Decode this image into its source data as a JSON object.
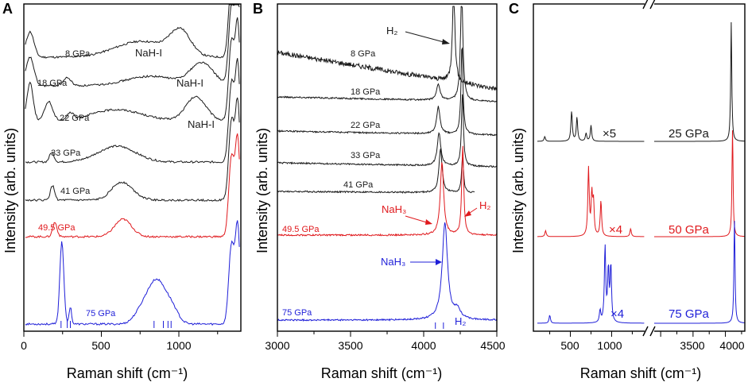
{
  "figure": {
    "panels": [
      "A",
      "B",
      "C"
    ],
    "y_axis_label": "Intensity (arb. units)",
    "x_axis_label": "Raman shift (cm⁻¹)"
  },
  "colors": {
    "black": "#1a1a1a",
    "red": "#e0191d",
    "blue": "#1f1fd8"
  },
  "chart_data": [
    {
      "panel": "A",
      "type": "line",
      "xlabel": "Raman shift (cm⁻¹)",
      "ylabel": "Intensity (arb. units)",
      "xlim": [
        0,
        1400
      ],
      "xticks": [
        "0",
        "500",
        "1000"
      ],
      "series": [
        {
          "name": "8 GPa",
          "color": "black",
          "offset": 7.0,
          "peaks": [
            [
              1010,
              0.75,
              65
            ],
            [
              760,
              0.5,
              170
            ],
            [
              40,
              0.8,
              25
            ]
          ]
        },
        {
          "name": "18 GPa",
          "color": "black",
          "offset": 6.0,
          "peaks": [
            [
              1150,
              0.7,
              75
            ],
            [
              820,
              0.3,
              160
            ],
            [
              40,
              0.9,
              25
            ],
            [
              280,
              0.25,
              25
            ]
          ]
        },
        {
          "name": "22 GPa",
          "color": "black",
          "offset": 5.05,
          "peaks": [
            [
              1110,
              0.75,
              65
            ],
            [
              600,
              0.35,
              160
            ],
            [
              160,
              0.6,
              25
            ],
            [
              40,
              1.2,
              20
            ],
            [
              300,
              0.2,
              20
            ]
          ]
        },
        {
          "name": "33 GPa",
          "color": "black",
          "offset": 3.85,
          "peaks": [
            [
              600,
              0.5,
              120
            ],
            [
              180,
              0.3,
              15
            ]
          ]
        },
        {
          "name": "41 GPa",
          "color": "black",
          "offset": 2.9,
          "peaks": [
            [
              620,
              0.5,
              60
            ],
            [
              185,
              0.45,
              14
            ],
            [
              700,
              0.15,
              60
            ]
          ]
        },
        {
          "name": "49.5 GPa",
          "color": "red",
          "offset": 1.85,
          "peaks": [
            [
              640,
              0.55,
              55
            ],
            [
              200,
              0.45,
              14
            ]
          ]
        },
        {
          "name": "75 GPa",
          "color": "blue",
          "offset": 0.0,
          "peaks": [
            [
              245,
              2.6,
              13
            ],
            [
              300,
              0.55,
              8
            ],
            [
              860,
              1.35,
              60
            ],
            [
              760,
              0.35,
              50
            ],
            [
              960,
              0.35,
              40
            ]
          ]
        }
      ],
      "annotations": [
        "NaH-I",
        "NaH-I",
        "NaH-I"
      ],
      "ticks_marks_75GPa": [
        240,
        280,
        300,
        840,
        900,
        930,
        950
      ]
    },
    {
      "panel": "B",
      "type": "line",
      "xlabel": "Raman shift (cm⁻¹)",
      "ylabel": "Intensity (arb. units)",
      "xlim": [
        3000,
        4500
      ],
      "xticks": [
        "3000",
        "3500",
        "4000",
        "4500"
      ],
      "series": [
        {
          "name": "8 GPa",
          "color": "black",
          "peaks": [
            [
              4205,
              3.2,
              10
            ]
          ]
        },
        {
          "name": "18 GPa",
          "color": "black",
          "peaks": [
            [
              4100,
              0.55,
              14
            ],
            [
              4260,
              3.6,
              10
            ]
          ]
        },
        {
          "name": "22 GPa",
          "color": "black",
          "peaks": [
            [
              4100,
              0.9,
              14
            ],
            [
              4262,
              3.0,
              8
            ]
          ]
        },
        {
          "name": "33 GPa",
          "color": "black",
          "peaks": [
            [
              4105,
              1.1,
              14
            ],
            [
              4265,
              2.4,
              8
            ]
          ]
        },
        {
          "name": "41 GPa",
          "color": "black",
          "peaks": [
            [
              4115,
              1.45,
              13
            ],
            [
              4266,
              1.2,
              8
            ]
          ]
        },
        {
          "name": "49.5 GPa",
          "color": "red",
          "peaks": [
            [
              4125,
              2.4,
              14
            ],
            [
              4267,
              3.0,
              8
            ]
          ]
        },
        {
          "name": "75 GPa",
          "color": "blue",
          "peaks": [
            [
              4145,
              3.2,
              22
            ],
            [
              4230,
              0.3,
              25
            ]
          ]
        }
      ],
      "annotations": [
        "H₂",
        "NaH₃",
        "H₂",
        "NaH₃",
        "H₂"
      ],
      "ticks_marks_75GPa": [
        4080,
        4135
      ]
    },
    {
      "panel": "C",
      "type": "line",
      "xlabel": "Raman shift (cm⁻¹)",
      "ylabel": "Intensity (arb. units)",
      "xlim_left": [
        100,
        1400
      ],
      "xlim_right": [
        2900,
        4300
      ],
      "xticks": [
        "500",
        "1000",
        "3500",
        "4000"
      ],
      "series": [
        {
          "name": "25 GPa",
          "color": "black",
          "multiplier": "×5",
          "peaks": [
            [
              515,
              0.75
            ],
            [
              580,
              0.6
            ],
            [
              690,
              0.2
            ],
            [
              750,
              0.4
            ],
            [
              4090,
              3.0
            ],
            [
              190,
              0.12
            ]
          ]
        },
        {
          "name": "50 GPa",
          "color": "red",
          "multiplier": "×4",
          "peaks": [
            [
              720,
              1.7
            ],
            [
              760,
              1.0
            ],
            [
              780,
              0.8
            ],
            [
              870,
              0.9
            ],
            [
              1230,
              0.2
            ],
            [
              200,
              0.15
            ],
            [
              4110,
              2.7
            ]
          ]
        },
        {
          "name": "75 GPa",
          "color": "blue",
          "multiplier": "×4",
          "peaks": [
            [
              920,
              1.9
            ],
            [
              960,
              1.3
            ],
            [
              990,
              1.4
            ],
            [
              860,
              0.3
            ],
            [
              250,
              0.2
            ],
            [
              4140,
              2.6
            ]
          ]
        }
      ]
    }
  ]
}
